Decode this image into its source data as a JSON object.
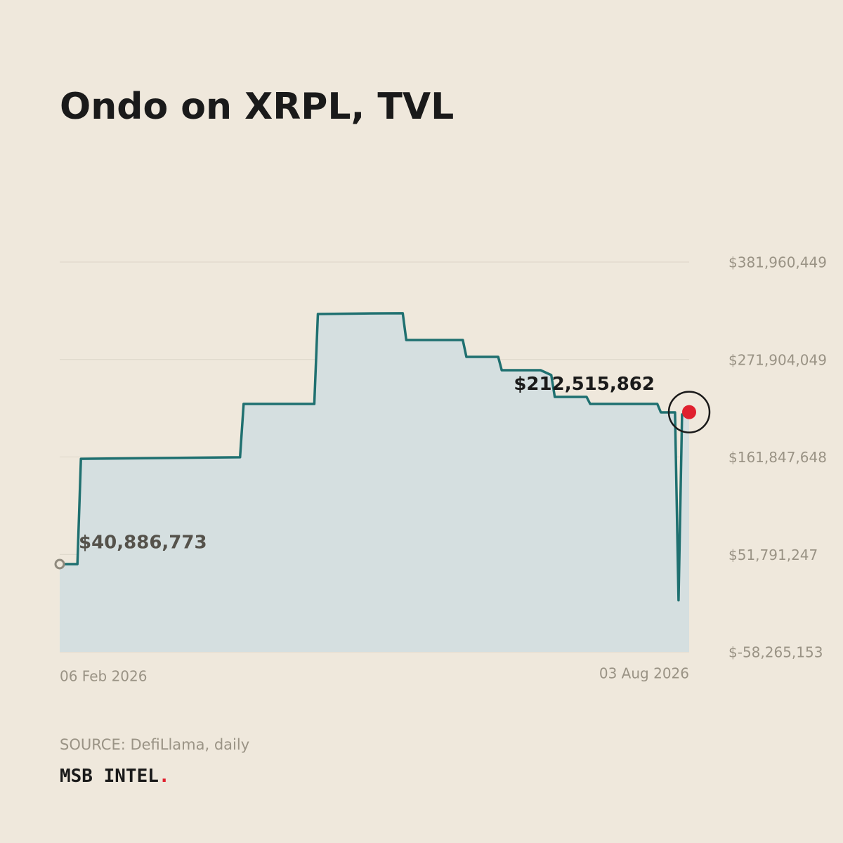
{
  "chart_data": {
    "type": "line",
    "title": "Ondo on XRPL, TVL",
    "source": "SOURCE: DefiLlama, daily",
    "brand": "MSB INTEL",
    "brand_mark": ".",
    "x": [
      "2026-02-06",
      "2026-02-11",
      "2026-02-12",
      "2026-03-29",
      "2026-03-30",
      "2026-04-19",
      "2026-04-20",
      "2026-05-05",
      "2026-05-14",
      "2026-05-15",
      "2026-05-31",
      "2026-06-01",
      "2026-06-10",
      "2026-06-11",
      "2026-06-22",
      "2026-06-25",
      "2026-06-26",
      "2026-07-05",
      "2026-07-06",
      "2026-07-25",
      "2026-07-26",
      "2026-07-30",
      "2026-07-31",
      "2026-08-01",
      "2026-08-02",
      "2026-08-03"
    ],
    "series": [
      {
        "name": "TVL",
        "color": "#1f7070",
        "fill": "#d5dfe0",
        "values": [
          40886773,
          40886773,
          159800000,
          161500000,
          221700000,
          221700000,
          323300000,
          324000000,
          324100000,
          293900000,
          293900000,
          274900000,
          274900000,
          259800000,
          259800000,
          254300000,
          229700000,
          229700000,
          221700000,
          221700000,
          212200000,
          212200000,
          0,
          209800000,
          212300000,
          212515862
        ],
        "value_labels": [
          "$40,886,773",
          null,
          null,
          null,
          null,
          null,
          null,
          null,
          null,
          null,
          null,
          null,
          null,
          null,
          null,
          null,
          null,
          null,
          null,
          null,
          null,
          null,
          null,
          null,
          null,
          "$212,515,862"
        ]
      }
    ],
    "xlim": [
      "2026-02-06",
      "2026-08-03"
    ],
    "xticks": [
      {
        "value": "2026-02-06",
        "label": "06 Feb 2026"
      },
      {
        "value": "2026-08-03",
        "label": "03 Aug 2026"
      }
    ],
    "ylim": [
      -58265153,
      381960449
    ],
    "yticks": [
      {
        "value": -58265153,
        "label": "$-58,265,153"
      },
      {
        "value": 51791247,
        "label": "$51,791,247"
      },
      {
        "value": 161847648,
        "label": "$161,847,648"
      },
      {
        "value": 271904049,
        "label": "$271,904,049"
      },
      {
        "value": 381960449,
        "label": "$381,960,449"
      }
    ],
    "grid": true,
    "highlight_color": "#e0202e"
  }
}
